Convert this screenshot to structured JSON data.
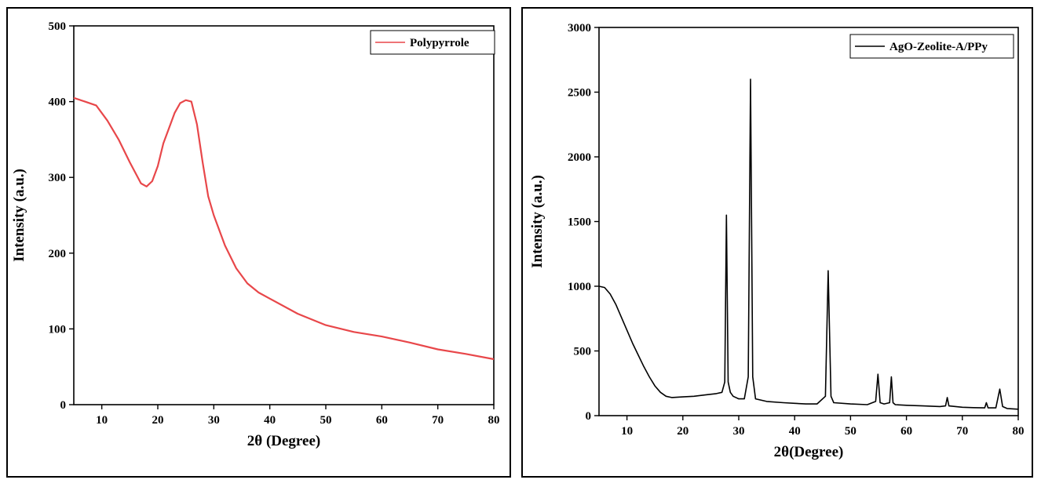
{
  "chart_data": [
    {
      "type": "line",
      "xlabel": "2θ (Degree)",
      "ylabel": "Intensity (a.u.)",
      "xlim": [
        5,
        80
      ],
      "ylim": [
        0,
        500
      ],
      "xticks": [
        10,
        20,
        30,
        40,
        50,
        60,
        70,
        80
      ],
      "yticks": [
        0,
        100,
        200,
        300,
        400,
        500
      ],
      "grid": false,
      "legend_position": "top-right",
      "series": [
        {
          "name": "Polypyrrole",
          "color": "#e8474a",
          "x": [
            5,
            7,
            9,
            11,
            13,
            15,
            17,
            18,
            19,
            20,
            21,
            22,
            23,
            24,
            25,
            26,
            27,
            28,
            29,
            30,
            32,
            34,
            36,
            38,
            40,
            45,
            50,
            55,
            60,
            65,
            70,
            75,
            80
          ],
          "y": [
            405,
            400,
            395,
            375,
            350,
            320,
            292,
            288,
            295,
            315,
            345,
            365,
            385,
            398,
            402,
            400,
            370,
            320,
            275,
            250,
            210,
            180,
            160,
            148,
            140,
            120,
            105,
            96,
            90,
            82,
            73,
            67,
            60
          ]
        }
      ]
    },
    {
      "type": "line",
      "xlabel": "2θ(Degree)",
      "ylabel": "Intensity (a.u.)",
      "xlim": [
        5,
        80
      ],
      "ylim": [
        0,
        3000
      ],
      "xticks": [
        10,
        20,
        30,
        40,
        50,
        60,
        70,
        80
      ],
      "yticks": [
        0,
        500,
        1000,
        1500,
        2000,
        2500,
        3000
      ],
      "grid": false,
      "legend_position": "top-right",
      "series": [
        {
          "name": "AgO-Zeolite-A/PPy",
          "color": "#000000",
          "x": [
            5,
            6,
            7,
            8,
            9,
            10,
            11,
            12,
            13,
            14,
            15,
            16,
            17,
            18,
            20,
            22,
            24,
            26,
            27,
            27.5,
            27.8,
            28.1,
            28.5,
            29,
            30,
            31,
            31.7,
            32.1,
            32.5,
            33,
            35,
            38,
            40,
            42,
            44,
            45.5,
            46,
            46.5,
            47,
            50,
            53,
            54.5,
            54.9,
            55.3,
            56,
            57,
            57.3,
            57.6,
            58,
            60,
            63,
            66,
            67,
            67.3,
            67.6,
            70,
            72,
            74,
            74.3,
            74.6,
            76,
            76.7,
            77.2,
            78,
            80
          ],
          "y": [
            1000,
            990,
            940,
            860,
            760,
            660,
            560,
            470,
            380,
            300,
            230,
            180,
            150,
            140,
            145,
            150,
            160,
            170,
            180,
            260,
            1550,
            260,
            180,
            150,
            130,
            130,
            300,
            2600,
            300,
            130,
            110,
            100,
            95,
            90,
            90,
            150,
            1120,
            150,
            100,
            90,
            85,
            110,
            320,
            100,
            90,
            100,
            300,
            100,
            85,
            80,
            75,
            70,
            75,
            140,
            75,
            65,
            62,
            60,
            100,
            60,
            60,
            205,
            70,
            55,
            50
          ]
        }
      ]
    }
  ]
}
